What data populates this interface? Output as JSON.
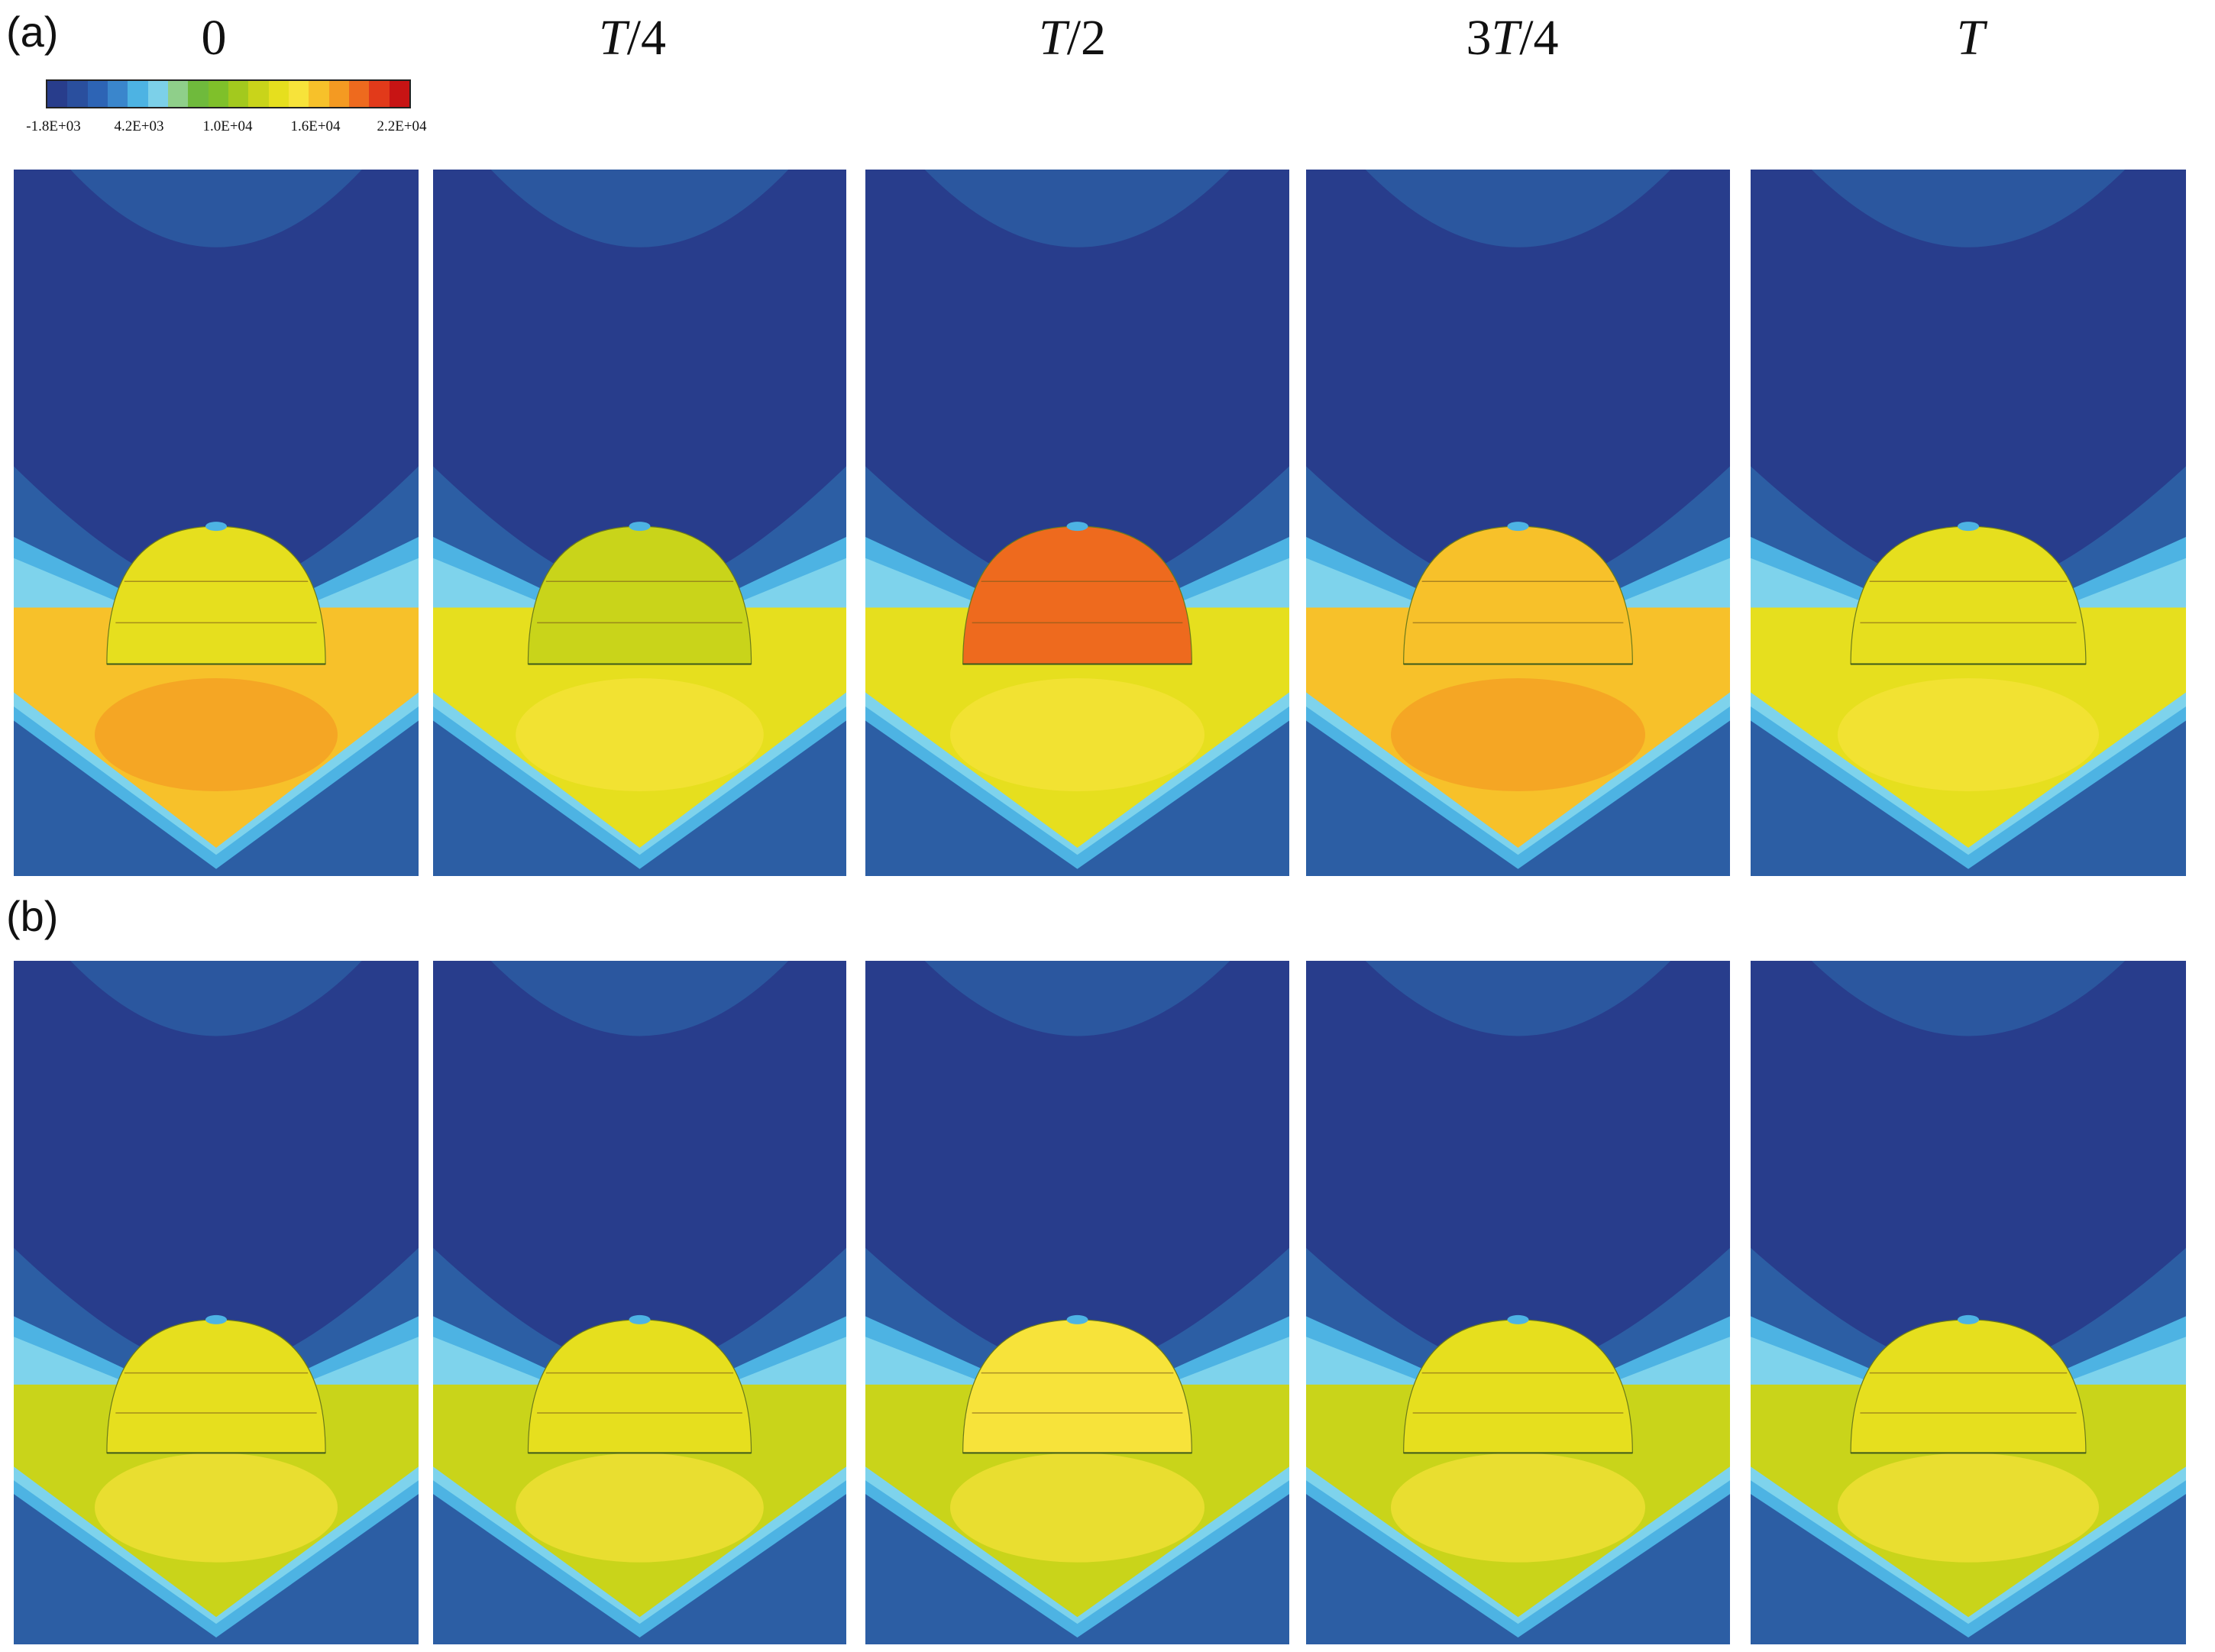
{
  "panel_labels": {
    "a": "(a)",
    "b": "(b)"
  },
  "column_titles": [
    {
      "prefix": "",
      "italic": "",
      "suffix": "0"
    },
    {
      "prefix": "",
      "italic": "T",
      "suffix": "/4"
    },
    {
      "prefix": "",
      "italic": "T",
      "suffix": "/2"
    },
    {
      "prefix": "3",
      "italic": "T",
      "suffix": "/4"
    },
    {
      "prefix": "",
      "italic": "T",
      "suffix": ""
    }
  ],
  "colorbar": {
    "ticks": [
      "-1.8E+03",
      "4.2E+03",
      "1.0E+04",
      "1.6E+04",
      "2.2E+04"
    ],
    "colors": [
      "#283d8c",
      "#2a4f9e",
      "#2d64b5",
      "#3a86cc",
      "#4db3e3",
      "#7cd0e9",
      "#8fcf8a",
      "#6fba3c",
      "#7fc02a",
      "#a3c91e",
      "#c9d41a",
      "#e6df1e",
      "#f7e33a",
      "#f7c12a",
      "#f49a22",
      "#ee6a1e",
      "#e23a1a",
      "#c81414"
    ],
    "colors_note": "discrete contour levels from low (blue) to high (red)"
  },
  "figure": {
    "rows": [
      {
        "id": "a",
        "level": [
          0.62,
          0.44,
          0.48,
          0.64,
          0.46
        ],
        "dome_level": [
          0.42,
          0.4,
          0.8,
          0.6,
          0.42
        ]
      },
      {
        "id": "b",
        "level": [
          0.4,
          0.4,
          0.4,
          0.4,
          0.4
        ],
        "dome_level": [
          0.42,
          0.42,
          0.55,
          0.48,
          0.42
        ]
      }
    ],
    "colors": {
      "background_deep": "#283d8c",
      "outer": "#2c5ea4",
      "band_light": "#4db3e3",
      "band_cyan": "#7ed3ec"
    }
  }
}
